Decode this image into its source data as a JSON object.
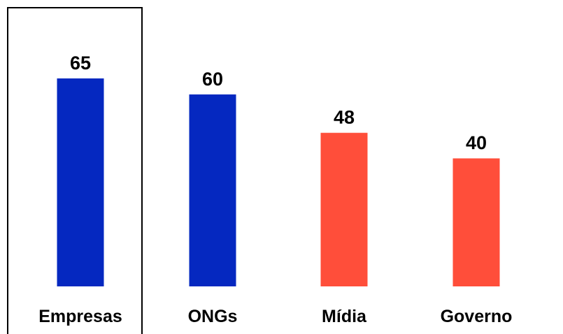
{
  "chart_data": {
    "type": "bar",
    "categories": [
      "Empresas",
      "ONGs",
      "Mídia",
      "Governo"
    ],
    "values": [
      65,
      60,
      48,
      40
    ],
    "colors": [
      "#0528c0",
      "#0528c0",
      "#ff4e3a",
      "#ff4e3a"
    ],
    "highlighted_category": "Empresas",
    "title": "",
    "xlabel": "",
    "ylabel": "",
    "ylim": [
      0,
      65
    ],
    "grid": false,
    "legend": "none",
    "data_labels": true
  }
}
